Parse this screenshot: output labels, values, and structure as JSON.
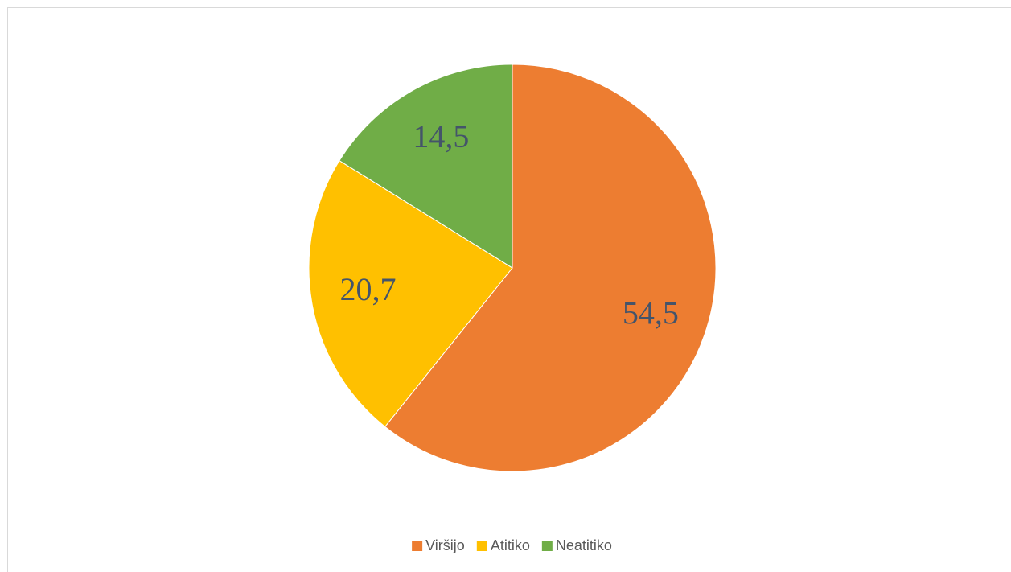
{
  "chart_data": {
    "type": "pie",
    "categories": [
      "Viršijo",
      "Atitiko",
      "Neatitiko"
    ],
    "values": [
      54.5,
      20.7,
      14.5
    ],
    "value_labels": [
      "54,5",
      "20,7",
      "14,5"
    ],
    "colors": [
      "#ed7d31",
      "#ffc000",
      "#70ad47"
    ],
    "legend": "bottom"
  }
}
